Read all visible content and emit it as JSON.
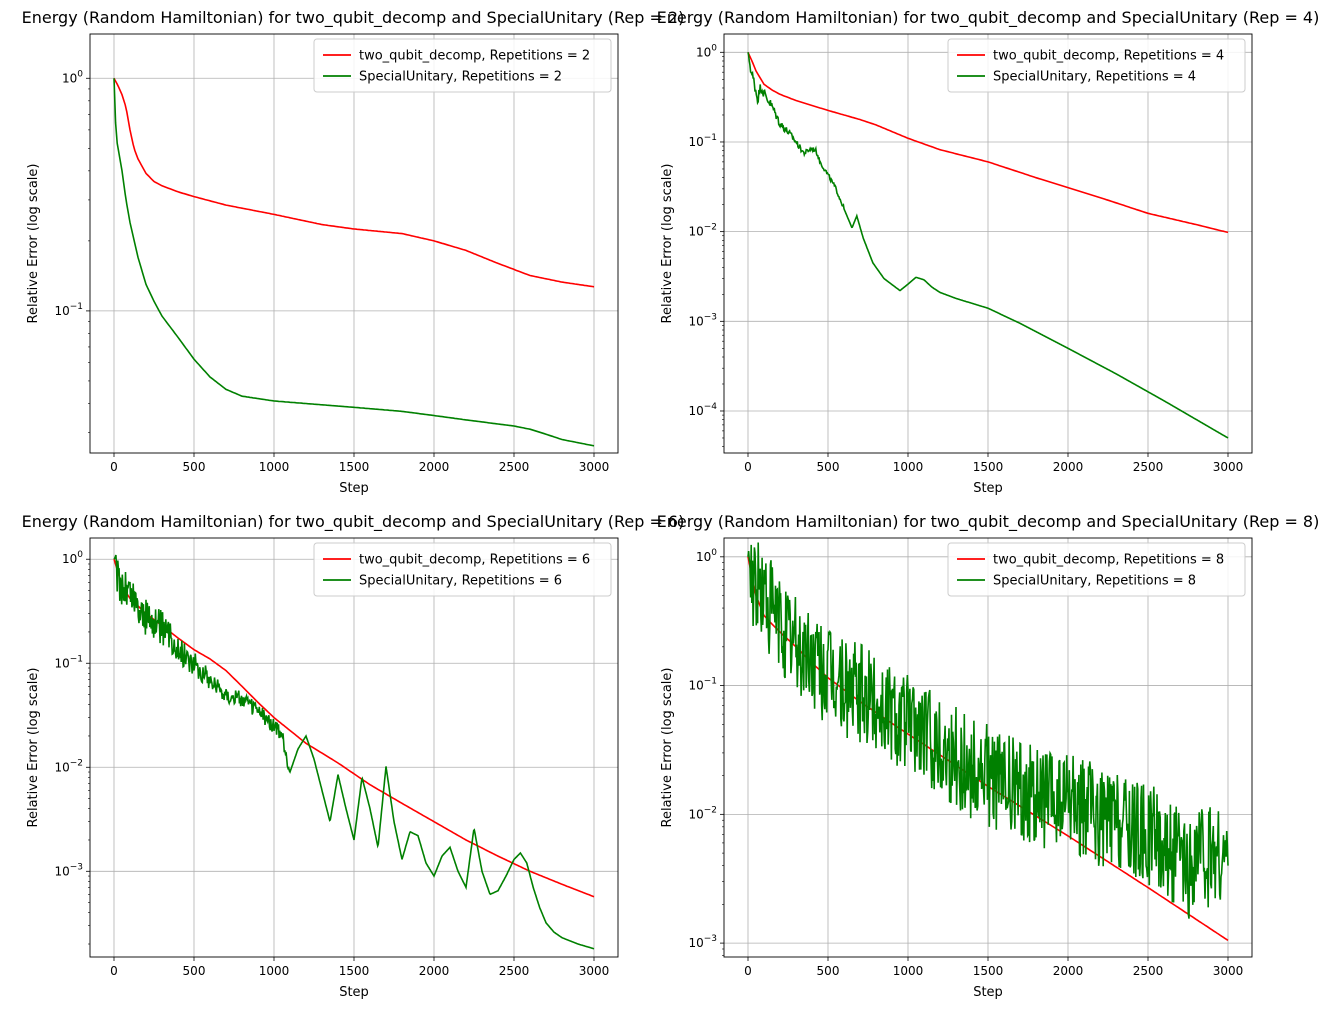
{
  "chart_data": [
    {
      "type": "line",
      "title": "Energy (Random Hamiltonian) for two_qubit_decomp and SpecialUnitary (Rep = 2)",
      "xlabel": "Step",
      "ylabel": "Relative Error (log scale)",
      "xlim": [
        -150,
        3150
      ],
      "ylim": [
        0.0245,
        1.55
      ],
      "yscale": "log",
      "xticks": [
        0,
        500,
        1000,
        1500,
        2000,
        2500,
        3000
      ],
      "yticks": [
        {
          "v": 1,
          "label": "10^0"
        },
        {
          "v": 0.1,
          "label": "10^-1"
        }
      ],
      "grid": true,
      "legend_position": "top-right",
      "series": [
        {
          "name": "two_qubit_decomp, Repetitions = 2",
          "color": "#ff0000",
          "noise": 0,
          "x": [
            0,
            25,
            50,
            75,
            100,
            125,
            150,
            200,
            250,
            300,
            400,
            500,
            700,
            1000,
            1300,
            1500,
            1800,
            2000,
            2200,
            2400,
            2600,
            2800,
            3000
          ],
          "y": [
            1.0,
            0.93,
            0.85,
            0.75,
            0.6,
            0.5,
            0.45,
            0.39,
            0.36,
            0.345,
            0.325,
            0.31,
            0.285,
            0.26,
            0.235,
            0.225,
            0.215,
            0.2,
            0.182,
            0.16,
            0.142,
            0.133,
            0.127
          ]
        },
        {
          "name": "SpecialUnitary, Repetitions = 2",
          "color": "#008000",
          "noise": 0,
          "x": [
            0,
            5,
            15,
            30,
            50,
            75,
            100,
            150,
            200,
            250,
            300,
            400,
            500,
            600,
            700,
            800,
            1000,
            1500,
            1800,
            2000,
            2200,
            2500,
            2600,
            2700,
            2800,
            3000
          ],
          "y": [
            1.0,
            0.75,
            0.55,
            0.48,
            0.4,
            0.3,
            0.24,
            0.17,
            0.13,
            0.11,
            0.095,
            0.077,
            0.062,
            0.052,
            0.046,
            0.043,
            0.041,
            0.0385,
            0.037,
            0.0355,
            0.034,
            0.032,
            0.031,
            0.0295,
            0.028,
            0.0263
          ]
        }
      ]
    },
    {
      "type": "line",
      "title": "Energy (Random Hamiltonian) for two_qubit_decomp and SpecialUnitary (Rep = 4)",
      "xlabel": "Step",
      "ylabel": "Relative Error (log scale)",
      "xlim": [
        -150,
        3150
      ],
      "ylim": [
        3.4e-05,
        1.6
      ],
      "yscale": "log",
      "xticks": [
        0,
        500,
        1000,
        1500,
        2000,
        2500,
        3000
      ],
      "yticks": [
        {
          "v": 1,
          "label": "10^0"
        },
        {
          "v": 0.1,
          "label": "10^-1"
        },
        {
          "v": 0.01,
          "label": "10^-2"
        },
        {
          "v": 0.001,
          "label": "10^-3"
        },
        {
          "v": 0.0001,
          "label": "10^-4"
        }
      ],
      "grid": true,
      "legend_position": "top-right",
      "series": [
        {
          "name": "two_qubit_decomp, Repetitions = 4",
          "color": "#ff0000",
          "noise": 0,
          "x": [
            0,
            25,
            50,
            100,
            150,
            200,
            300,
            400,
            500,
            600,
            700,
            800,
            1000,
            1200,
            1500,
            1800,
            2000,
            2200,
            2500,
            2800,
            3000
          ],
          "y": [
            1.0,
            0.8,
            0.62,
            0.44,
            0.38,
            0.34,
            0.29,
            0.255,
            0.225,
            0.2,
            0.178,
            0.155,
            0.11,
            0.082,
            0.06,
            0.04,
            0.031,
            0.024,
            0.016,
            0.012,
            0.0098
          ]
        },
        {
          "name": "SpecialUnitary, Repetitions = 4",
          "color": "#008000",
          "noise": 0.07,
          "noise_until": 600,
          "x": [
            0,
            20,
            40,
            60,
            80,
            100,
            150,
            200,
            250,
            300,
            350,
            400,
            425,
            450,
            500,
            550,
            600,
            650,
            680,
            720,
            780,
            850,
            950,
            1000,
            1050,
            1100,
            1150,
            1200,
            1300,
            1500,
            1700,
            2000,
            2300,
            2600,
            3000
          ],
          "y": [
            1.0,
            0.6,
            0.45,
            0.3,
            0.42,
            0.35,
            0.25,
            0.16,
            0.13,
            0.1,
            0.075,
            0.085,
            0.08,
            0.06,
            0.043,
            0.03,
            0.018,
            0.011,
            0.015,
            0.0085,
            0.0045,
            0.003,
            0.0022,
            0.0026,
            0.0031,
            0.0029,
            0.0024,
            0.0021,
            0.0018,
            0.0014,
            0.00095,
            0.0005,
            0.00026,
            0.00013,
            5e-05
          ]
        }
      ]
    },
    {
      "type": "line",
      "title": "Energy (Random Hamiltonian) for two_qubit_decomp and SpecialUnitary (Rep = 6)",
      "xlabel": "Step",
      "ylabel": "Relative Error (log scale)",
      "xlim": [
        -150,
        3150
      ],
      "ylim": [
        0.00015,
        1.6
      ],
      "yscale": "log",
      "xticks": [
        0,
        500,
        1000,
        1500,
        2000,
        2500,
        3000
      ],
      "yticks": [
        {
          "v": 1,
          "label": "10^0"
        },
        {
          "v": 0.1,
          "label": "10^-1"
        },
        {
          "v": 0.01,
          "label": "10^-2"
        },
        {
          "v": 0.001,
          "label": "10^-3"
        }
      ],
      "grid": true,
      "legend_position": "top-right",
      "series": [
        {
          "name": "two_qubit_decomp, Repetitions = 6",
          "color": "#ff0000",
          "noise": 0,
          "x": [
            0,
            25,
            50,
            100,
            200,
            300,
            400,
            500,
            600,
            700,
            800,
            900,
            1000,
            1200,
            1400,
            1600,
            1800,
            2000,
            2200,
            2400,
            2600,
            2800,
            3000
          ],
          "y": [
            1.0,
            0.75,
            0.55,
            0.42,
            0.3,
            0.23,
            0.175,
            0.135,
            0.11,
            0.085,
            0.06,
            0.042,
            0.03,
            0.017,
            0.011,
            0.0068,
            0.0045,
            0.003,
            0.002,
            0.0014,
            0.001,
            0.00075,
            0.00057
          ]
        },
        {
          "name": "SpecialUnitary, Repetitions = 6",
          "color": "#008000",
          "noise": 0.22,
          "noise_until": 1100,
          "x": [
            0,
            30,
            60,
            100,
            150,
            200,
            300,
            400,
            500,
            600,
            700,
            800,
            900,
            1000,
            1050,
            1100,
            1150,
            1200,
            1250,
            1300,
            1350,
            1400,
            1450,
            1500,
            1550,
            1600,
            1650,
            1700,
            1750,
            1800,
            1850,
            1900,
            1950,
            2000,
            2050,
            2100,
            2150,
            2200,
            2250,
            2300,
            2350,
            2400,
            2450,
            2500,
            2540,
            2580,
            2620,
            2660,
            2700,
            2750,
            2800,
            2900,
            3000
          ],
          "y": [
            1.0,
            0.62,
            0.55,
            0.48,
            0.35,
            0.28,
            0.22,
            0.14,
            0.1,
            0.07,
            0.05,
            0.045,
            0.035,
            0.025,
            0.02,
            0.009,
            0.015,
            0.02,
            0.012,
            0.006,
            0.003,
            0.0085,
            0.004,
            0.002,
            0.008,
            0.004,
            0.0017,
            0.0102,
            0.003,
            0.0013,
            0.0024,
            0.0022,
            0.0012,
            0.0009,
            0.0014,
            0.0017,
            0.001,
            0.0007,
            0.0026,
            0.001,
            0.0006,
            0.00065,
            0.0009,
            0.0013,
            0.0015,
            0.0012,
            0.0007,
            0.00045,
            0.00032,
            0.00026,
            0.00023,
            0.0002,
            0.00018
          ]
        }
      ]
    },
    {
      "type": "line",
      "title": "Energy (Random Hamiltonian) for two_qubit_decomp and SpecialUnitary (Rep = 8)",
      "xlabel": "Step",
      "ylabel": "Relative Error (log scale)",
      "xlim": [
        -150,
        3150
      ],
      "ylim": [
        0.00078,
        1.4
      ],
      "yscale": "log",
      "xticks": [
        0,
        500,
        1000,
        1500,
        2000,
        2500,
        3000
      ],
      "yticks": [
        {
          "v": 1,
          "label": "10^0"
        },
        {
          "v": 0.1,
          "label": "10^-1"
        },
        {
          "v": 0.01,
          "label": "10^-2"
        },
        {
          "v": 0.001,
          "label": "10^-3"
        }
      ],
      "grid": true,
      "legend_position": "top-right",
      "series": [
        {
          "name": "two_qubit_decomp, Repetitions = 8",
          "color": "#ff0000",
          "noise": 0,
          "x": [
            0,
            25,
            50,
            100,
            150,
            200,
            300,
            400,
            500,
            700,
            1000,
            1500,
            2000,
            2500,
            3000
          ],
          "y": [
            1.0,
            0.7,
            0.5,
            0.35,
            0.3,
            0.26,
            0.2,
            0.15,
            0.115,
            0.075,
            0.042,
            0.0165,
            0.0068,
            0.0027,
            0.00105
          ]
        },
        {
          "name": "SpecialUnitary, Repetitions = 8",
          "color": "#008000",
          "noise": 0.4,
          "noise_until": 3000,
          "x": [
            0,
            50,
            100,
            200,
            300,
            400,
            500,
            600,
            700,
            800,
            900,
            1000,
            1100,
            1200,
            1300,
            1400,
            1500,
            1600,
            1700,
            1800,
            1900,
            2000,
            2100,
            2200,
            2300,
            2400,
            2500,
            2600,
            2700,
            2750,
            2800,
            2900,
            3000
          ],
          "y": [
            1.0,
            0.6,
            0.5,
            0.3,
            0.2,
            0.16,
            0.12,
            0.1,
            0.085,
            0.075,
            0.065,
            0.05,
            0.045,
            0.035,
            0.028,
            0.022,
            0.02,
            0.018,
            0.016,
            0.014,
            0.013,
            0.012,
            0.011,
            0.0095,
            0.009,
            0.008,
            0.007,
            0.006,
            0.0045,
            0.003,
            0.005,
            0.0045,
            0.004
          ]
        }
      ]
    }
  ]
}
